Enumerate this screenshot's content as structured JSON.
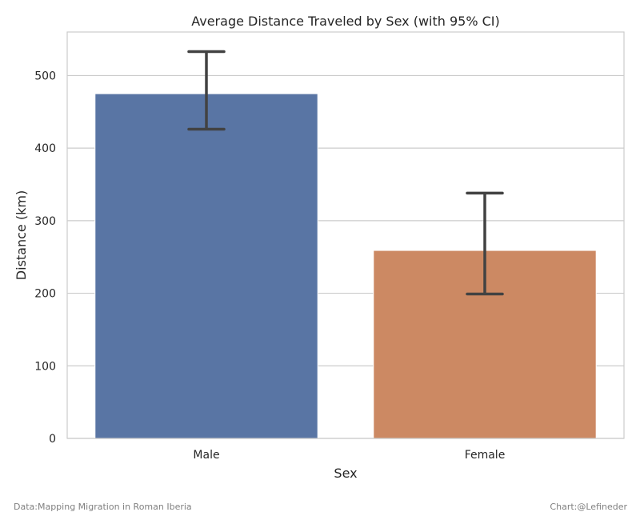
{
  "chart_data": {
    "type": "bar",
    "title": "Average Distance Traveled by Sex (with 95% CI)",
    "xlabel": "Sex",
    "ylabel": "Distance (km)",
    "categories": [
      "Male",
      "Female"
    ],
    "values": [
      475,
      259
    ],
    "ci_low": [
      426,
      199
    ],
    "ci_high": [
      533,
      338
    ],
    "ylim": [
      0,
      560
    ],
    "yticks": [
      0,
      100,
      200,
      300,
      400,
      500
    ],
    "grid": true,
    "colors": [
      "#5975a4",
      "#cc8963"
    ],
    "errorbar_color": "#424242"
  },
  "footer": {
    "source": "Data:Mapping Migration in Roman Iberia",
    "credit": "Chart:@Lefineder"
  }
}
